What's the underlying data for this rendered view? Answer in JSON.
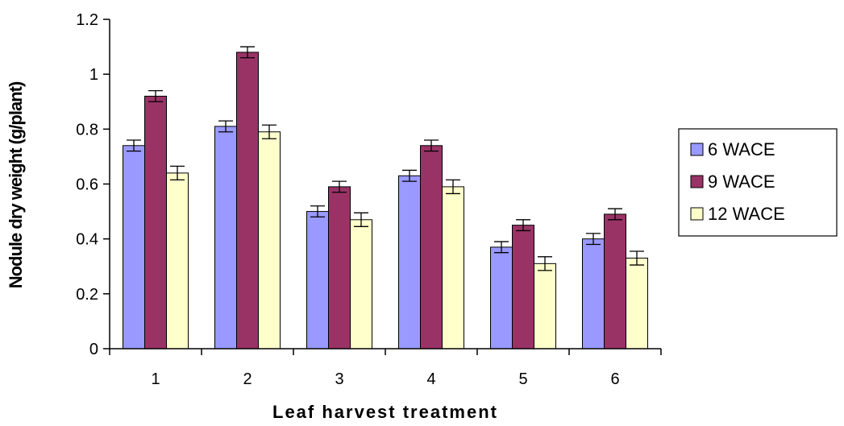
{
  "chart_data": {
    "type": "bar",
    "xlabel": "Leaf harvest treatment",
    "ylabel": "Nodule dry weight (g/plant)",
    "categories": [
      "1",
      "2",
      "3",
      "4",
      "5",
      "6"
    ],
    "ylim": [
      0,
      1.2
    ],
    "yticks": [
      "0",
      "0.2",
      "0.4",
      "0.6",
      "0.8",
      "1",
      "1.2"
    ],
    "ytick_values": [
      0,
      0.2,
      0.4,
      0.6,
      0.8,
      1.0,
      1.2
    ],
    "grid": false,
    "legend_position": "right",
    "series": [
      {
        "name": "6 WACE",
        "color": "#9999ff",
        "values": [
          0.74,
          0.81,
          0.5,
          0.63,
          0.37,
          0.4
        ],
        "errors": [
          0.02,
          0.02,
          0.02,
          0.02,
          0.02,
          0.02
        ]
      },
      {
        "name": "9 WACE",
        "color": "#993366",
        "values": [
          0.92,
          1.08,
          0.59,
          0.74,
          0.45,
          0.49
        ],
        "errors": [
          0.02,
          0.02,
          0.02,
          0.02,
          0.02,
          0.02
        ]
      },
      {
        "name": "12 WACE",
        "color": "#ffffcc",
        "values": [
          0.64,
          0.79,
          0.47,
          0.59,
          0.31,
          0.33
        ],
        "errors": [
          0.025,
          0.025,
          0.025,
          0.025,
          0.025,
          0.025
        ]
      }
    ]
  }
}
